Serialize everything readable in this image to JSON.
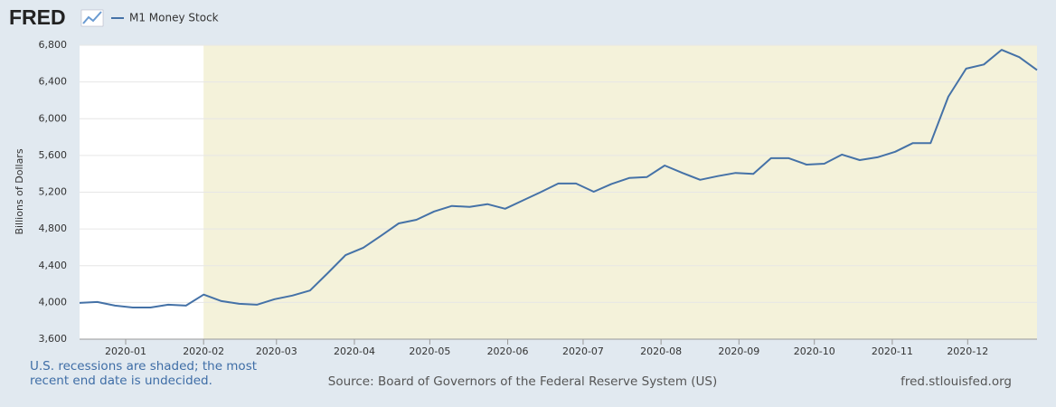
{
  "logo": "FRED",
  "chart_data": {
    "type": "line",
    "y_label": "Billions of Dollars",
    "x_ticks": [
      "2020-01",
      "2020-02",
      "2020-03",
      "2020-04",
      "2020-05",
      "2020-06",
      "2020-07",
      "2020-08",
      "2020-09",
      "2020-10",
      "2020-11",
      "2020-12"
    ],
    "recession_start": "2020-02",
    "recession_color": "#f4f2da",
    "grid": true,
    "ylim": [
      3600,
      6800
    ],
    "yticks": [
      {
        "value": 3600,
        "label": "3,600"
      },
      {
        "value": 4000,
        "label": "4,000"
      },
      {
        "value": 4400,
        "label": "4,400"
      },
      {
        "value": 4800,
        "label": "4,800"
      },
      {
        "value": 5200,
        "label": "5,200"
      },
      {
        "value": 5600,
        "label": "5,600"
      },
      {
        "value": 6000,
        "label": "6,000"
      },
      {
        "value": 6400,
        "label": "6,400"
      },
      {
        "value": 6800,
        "label": "6,800"
      }
    ],
    "series": [
      {
        "name": "M1 Money Stock",
        "color": "#4572a7",
        "values": [
          3995,
          4005,
          3965,
          3945,
          3945,
          3975,
          3965,
          4085,
          4015,
          3985,
          3975,
          4035,
          4075,
          4130,
          4320,
          4515,
          4595,
          4725,
          4860,
          4900,
          4990,
          5050,
          5040,
          5070,
          5020,
          5110,
          5200,
          5295,
          5295,
          5205,
          5290,
          5355,
          5365,
          5490,
          5410,
          5335,
          5375,
          5410,
          5400,
          5570,
          5570,
          5500,
          5510,
          5610,
          5550,
          5580,
          5640,
          5735,
          5735,
          6240,
          6545,
          6590,
          6750,
          6670,
          6530
        ]
      }
    ],
    "note": "U.S. recessions are shaded; the most recent end date is undecided.",
    "source": "Source: Board of Governors of the Federal Reserve System (US)",
    "site": "fred.stlouisfed.org"
  }
}
